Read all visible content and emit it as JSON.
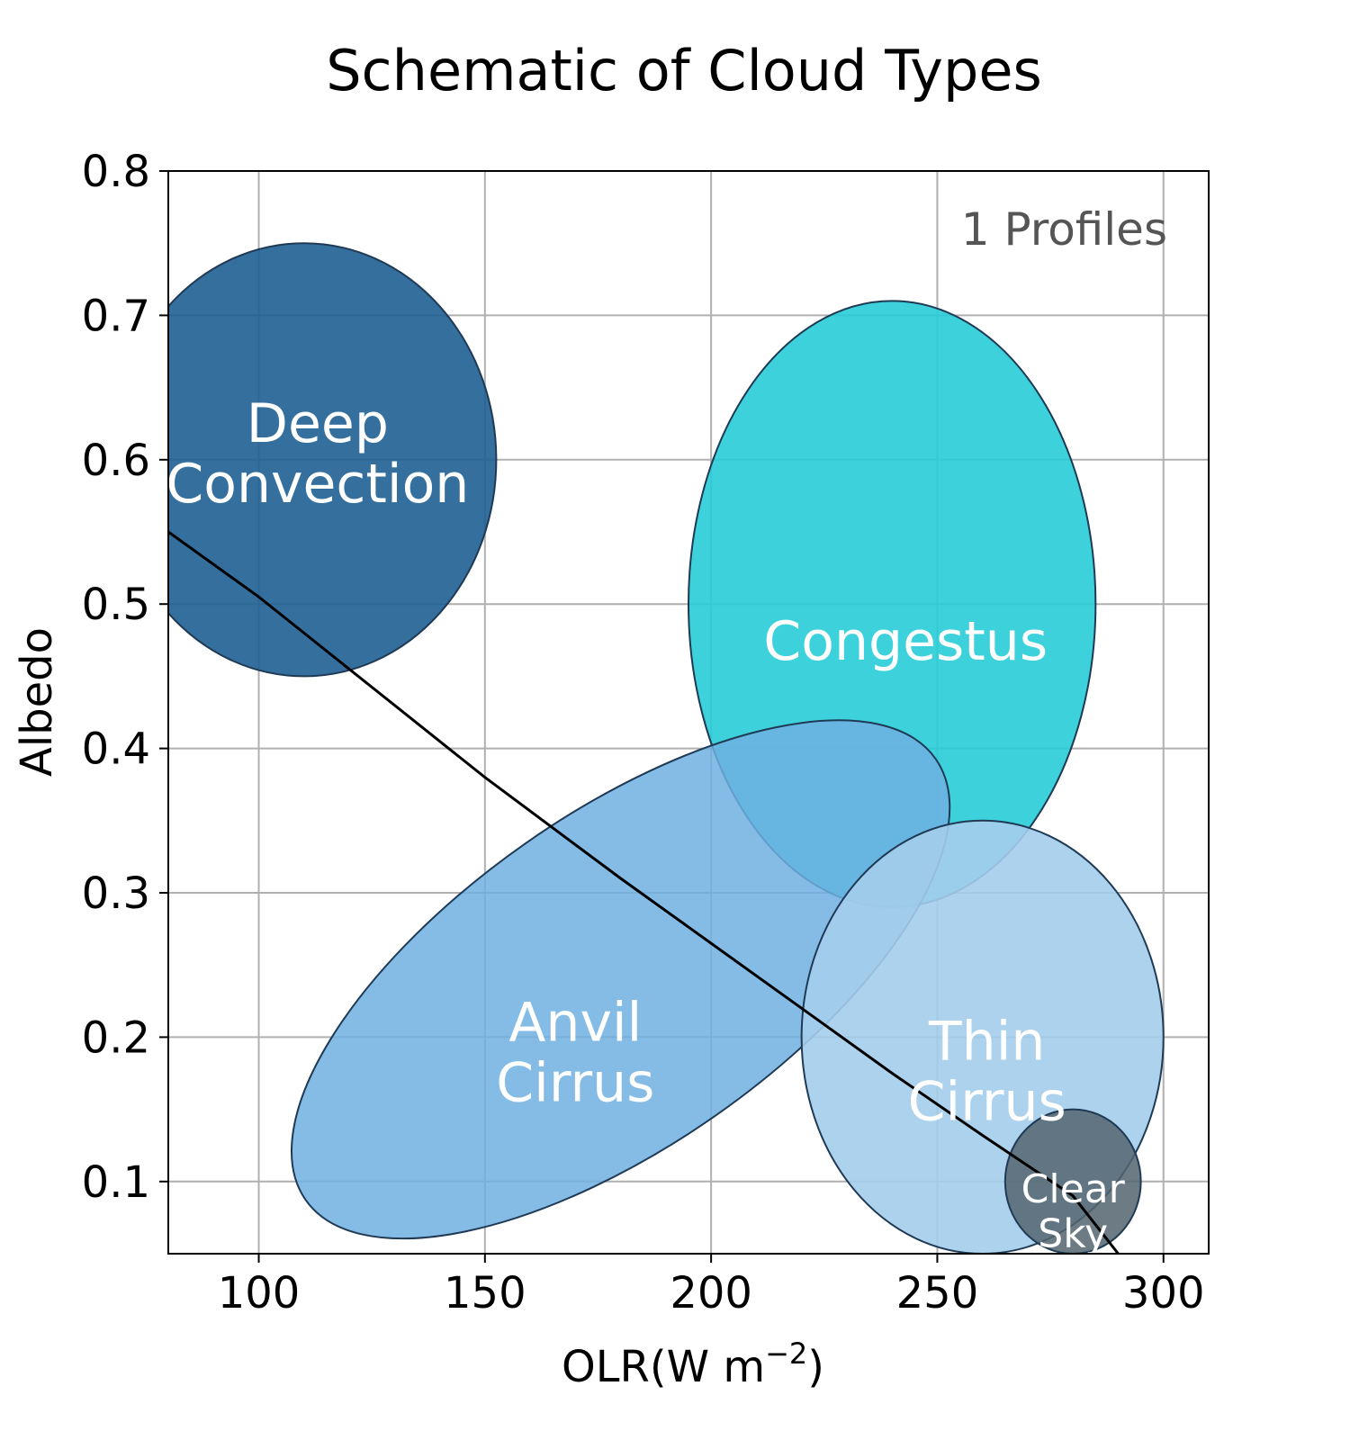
{
  "chart_data": {
    "type": "scatter",
    "title": "Schematic of Cloud Types",
    "xlabel": "OLR(W m",
    "xlabel_sup": "−2",
    "xlabel_end": ")",
    "ylabel": "Albedo",
    "xlim": [
      80,
      310
    ],
    "ylim": [
      0.05,
      0.8
    ],
    "xticks": [
      100,
      150,
      200,
      250,
      300
    ],
    "yticks": [
      0.1,
      0.2,
      0.3,
      0.4,
      0.5,
      0.6,
      0.7,
      0.8
    ],
    "xtick_labels": [
      "100",
      "150",
      "200",
      "250",
      "300"
    ],
    "ytick_labels": [
      "0.1",
      "0.2",
      "0.3",
      "0.4",
      "0.5",
      "0.6",
      "0.7",
      "0.8"
    ],
    "grid": true,
    "annotation": "1 Profiles",
    "regions": [
      {
        "label_lines": [
          "Deep",
          "Convection"
        ],
        "label_pos": [
          113,
          0.605
        ],
        "center": [
          110,
          0.6
        ],
        "width": 85,
        "height": 0.3,
        "angle": 0,
        "color": "#1f5f94",
        "alpha": 0.9
      },
      {
        "label_lines": [
          "Congestus"
        ],
        "label_pos": [
          243,
          0.475
        ],
        "center": [
          240,
          0.5
        ],
        "width": 90,
        "height": 0.42,
        "angle": 0,
        "color": "#28cdd7",
        "alpha": 0.9
      },
      {
        "label_lines": [
          "Anvil",
          "Cirrus"
        ],
        "label_pos": [
          170,
          0.19
        ],
        "center": [
          180,
          0.24
        ],
        "width": 170,
        "height": 0.23,
        "angle": -35,
        "color": "#6fb0e2",
        "alpha": 0.85
      },
      {
        "label_lines": [
          "Thin",
          "Cirrus"
        ],
        "label_pos": [
          261,
          0.177
        ],
        "center": [
          260,
          0.2
        ],
        "width": 80,
        "height": 0.3,
        "angle": 0,
        "color": "#a4cdeb",
        "alpha": 0.9
      },
      {
        "label_lines": [
          "Clear",
          "Sky"
        ],
        "label_pos": [
          280,
          0.08
        ],
        "center": [
          280,
          0.1
        ],
        "width": 30,
        "height": 0.1,
        "angle": 0,
        "color": "#54656f",
        "alpha": 0.85
      }
    ],
    "line": {
      "x": [
        80,
        100,
        120,
        150,
        180,
        200,
        220,
        240,
        260,
        280,
        290
      ],
      "y": [
        0.55,
        0.505,
        0.455,
        0.38,
        0.31,
        0.265,
        0.22,
        0.175,
        0.132,
        0.09,
        0.05
      ],
      "color": "#000000"
    }
  }
}
